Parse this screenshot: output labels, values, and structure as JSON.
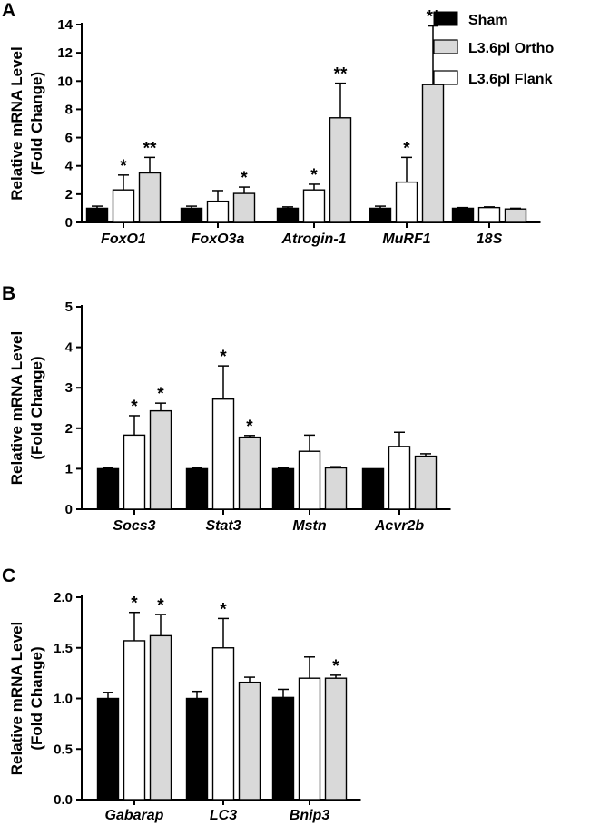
{
  "legend": {
    "entries": [
      {
        "label": "Sham",
        "color": "#000000"
      },
      {
        "label": "L3.6pl Ortho",
        "color": "#d9d9d9"
      },
      {
        "label": "L3.6pl Flank",
        "color": "#ffffff"
      }
    ]
  },
  "chart_data": [
    {
      "panel": "A",
      "type": "bar",
      "ylabel_line1": "Relative mRNA Level",
      "ylabel_line2": "(Fold Change)",
      "ylim": [
        0,
        14
      ],
      "yticks": [
        0,
        2,
        4,
        6,
        8,
        10,
        12,
        14
      ],
      "tick_labels": [
        "0",
        "2",
        "4",
        "6",
        "8",
        "10",
        "12",
        "14"
      ],
      "categories": [
        "FoxO1",
        "FoxO3a",
        "Atrogin-1",
        "MuRF1",
        "18S"
      ],
      "series": [
        {
          "name": "Sham",
          "color": "#000000",
          "values": [
            1.0,
            1.0,
            1.0,
            1.0,
            1.0
          ],
          "errors": [
            0.15,
            0.15,
            0.1,
            0.15,
            0.05
          ],
          "stars": [
            "",
            "",
            "",
            "",
            ""
          ]
        },
        {
          "name": "L3.6pl Flank",
          "color": "#ffffff",
          "values": [
            2.3,
            1.5,
            2.3,
            2.85,
            1.05
          ],
          "errors": [
            1.05,
            0.75,
            0.4,
            1.75,
            0.05
          ],
          "stars": [
            "*",
            "",
            "*",
            "*",
            ""
          ]
        },
        {
          "name": "L3.6pl Ortho",
          "color": "#d9d9d9",
          "values": [
            3.5,
            2.05,
            7.4,
            9.75,
            0.95
          ],
          "errors": [
            1.1,
            0.45,
            2.45,
            4.15,
            0.05
          ],
          "stars": [
            "**",
            "*",
            "**",
            "**",
            ""
          ]
        }
      ]
    },
    {
      "panel": "B",
      "type": "bar",
      "ylabel_line1": "Relative mRNA Level",
      "ylabel_line2": "(Fold Change)",
      "ylim": [
        0,
        5
      ],
      "yticks": [
        0,
        1,
        2,
        3,
        4,
        5
      ],
      "tick_labels": [
        "0",
        "1",
        "2",
        "3",
        "4",
        "5"
      ],
      "categories": [
        "Socs3",
        "Stat3",
        "Mstn",
        "Acvr2b"
      ],
      "series": [
        {
          "name": "Sham",
          "color": "#000000",
          "values": [
            1.0,
            1.0,
            1.0,
            1.0
          ],
          "errors": [
            0.02,
            0.02,
            0.02,
            0.0
          ],
          "stars": [
            "",
            "",
            "",
            ""
          ]
        },
        {
          "name": "L3.6pl Flank",
          "color": "#ffffff",
          "values": [
            1.83,
            2.72,
            1.43,
            1.55
          ],
          "errors": [
            0.48,
            0.82,
            0.4,
            0.35
          ],
          "stars": [
            "*",
            "*",
            "",
            ""
          ]
        },
        {
          "name": "L3.6pl Ortho",
          "color": "#d9d9d9",
          "values": [
            2.43,
            1.78,
            1.02,
            1.31
          ],
          "errors": [
            0.19,
            0.04,
            0.03,
            0.06
          ],
          "stars": [
            "*",
            "*",
            "",
            ""
          ]
        }
      ]
    },
    {
      "panel": "C",
      "type": "bar",
      "ylabel_line1": "Relative mRNA Level",
      "ylabel_line2": "(Fold Change)",
      "ylim": [
        0,
        2
      ],
      "yticks": [
        0,
        0.5,
        1,
        1.5,
        2
      ],
      "tick_labels": [
        "0.0",
        "0.5",
        "1.0",
        "1.5",
        "2.0"
      ],
      "categories": [
        "Gabarap",
        "LC3",
        "Bnip3"
      ],
      "series": [
        {
          "name": "Sham",
          "color": "#000000",
          "values": [
            1.0,
            1.0,
            1.01
          ],
          "errors": [
            0.06,
            0.07,
            0.08
          ],
          "stars": [
            "",
            "",
            ""
          ]
        },
        {
          "name": "L3.6pl Flank",
          "color": "#ffffff",
          "values": [
            1.57,
            1.5,
            1.2
          ],
          "errors": [
            0.28,
            0.29,
            0.21
          ],
          "stars": [
            "*",
            "*",
            ""
          ]
        },
        {
          "name": "L3.6pl Ortho",
          "color": "#d9d9d9",
          "values": [
            1.62,
            1.16,
            1.2
          ],
          "errors": [
            0.21,
            0.05,
            0.03
          ],
          "stars": [
            "*",
            "",
            "*"
          ]
        }
      ]
    }
  ]
}
